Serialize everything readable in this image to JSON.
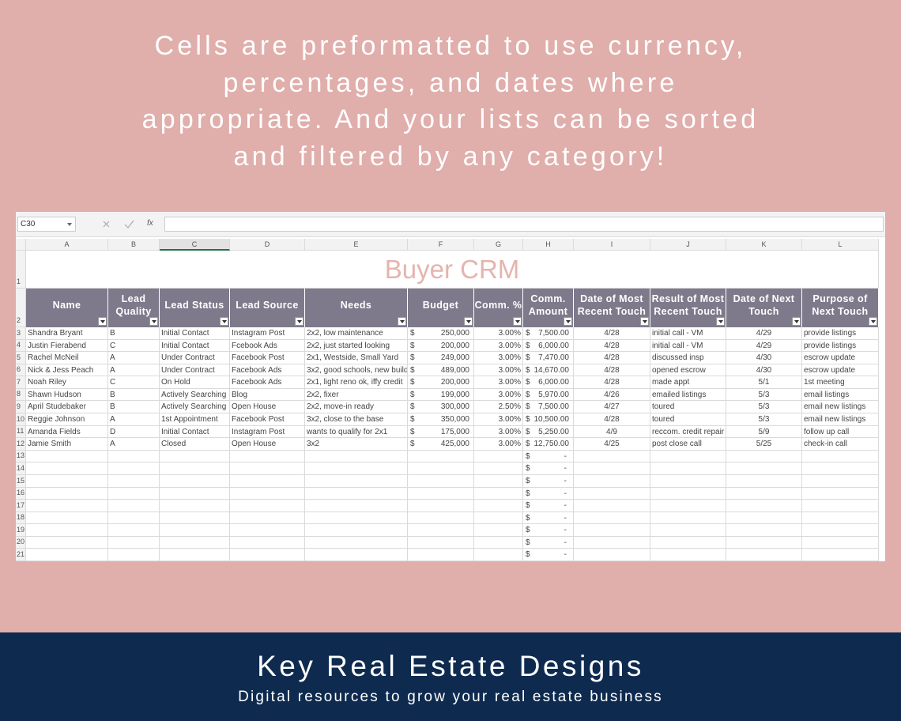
{
  "headline": {
    "lines": [
      "Cells are preformatted to use currency,",
      "percentages, and dates where",
      "appropriate. And your lists can be sorted",
      "and filtered by any category!"
    ]
  },
  "formula_bar": {
    "name_box": "C30",
    "fx_label": "fx"
  },
  "sheet": {
    "column_letters": [
      "A",
      "B",
      "C",
      "D",
      "E",
      "F",
      "G",
      "H",
      "I",
      "J",
      "K",
      "L"
    ],
    "row_numbers": [
      1,
      2,
      3,
      4,
      5,
      6,
      7,
      8,
      9,
      10,
      11,
      12,
      13,
      14,
      15,
      16,
      17,
      18,
      19,
      20,
      21
    ],
    "title": "Buyer CRM",
    "headers": [
      "Name",
      "Lead\nQuality",
      "Lead Status",
      "Lead Source",
      "Needs",
      "Budget",
      "Comm. %",
      "Comm.\nAmount",
      "Date of Most\nRecent Touch",
      "Result of Most\nRecent Touch",
      "Date of Next\nTouch",
      "Purpose of\nNext Touch"
    ],
    "currency_symbol": "$",
    "empty_amount": "-",
    "rows": [
      [
        "Shandra Bryant",
        "B",
        "Initial Contact",
        "Instagram Post",
        "2x2, low maintenance",
        "250,000",
        "3.00%",
        "7,500.00",
        "4/28",
        "initial call - VM",
        "4/29",
        "provide listings"
      ],
      [
        "Justin Fierabend",
        "C",
        "Initial Contact",
        "Fcebook Ads",
        "2x2, just started looking",
        "200,000",
        "3.00%",
        "6,000.00",
        "4/28",
        "initial call - VM",
        "4/29",
        "provide listings"
      ],
      [
        "Rachel McNeil",
        "A",
        "Under Contract",
        "Facebook Post",
        "2x1, Westside, Small Yard",
        "249,000",
        "3.00%",
        "7,470.00",
        "4/28",
        "discussed insp",
        "4/30",
        "escrow update"
      ],
      [
        "Nick & Jess Peach",
        "A",
        "Under Contract",
        "Facebook Ads",
        "3x2, good schools, new build",
        "489,000",
        "3.00%",
        "14,670.00",
        "4/28",
        "opened escrow",
        "4/30",
        "escrow update"
      ],
      [
        "Noah Riley",
        "C",
        "On Hold",
        "Facebook Ads",
        "2x1, light reno ok, iffy credit",
        "200,000",
        "3.00%",
        "6,000.00",
        "4/28",
        "made appt",
        "5/1",
        "1st meeting"
      ],
      [
        "Shawn Hudson",
        "B",
        "Actively Searching",
        "Blog",
        "2x2, fixer",
        "199,000",
        "3.00%",
        "5,970.00",
        "4/26",
        "emailed listings",
        "5/3",
        "email listings"
      ],
      [
        "April Studebaker",
        "B",
        "Actively Searching",
        "Open House",
        "2x2, move-in ready",
        "300,000",
        "2.50%",
        "7,500.00",
        "4/27",
        "toured",
        "5/3",
        "email new listings"
      ],
      [
        "Reggie Johnson",
        "A",
        "1st Appointment",
        "Facebook Post",
        "3x2, close to the base",
        "350,000",
        "3.00%",
        "10,500.00",
        "4/28",
        "toured",
        "5/3",
        "email new listings"
      ],
      [
        "Amanda Fields",
        "D",
        "Initial Contact",
        "Instagram Post",
        "wants to qualify for 2x1",
        "175,000",
        "3.00%",
        "5,250.00",
        "4/9",
        "reccom. credit repair",
        "5/9",
        "follow up call"
      ],
      [
        "Jamie Smith",
        "A",
        "Closed",
        "Open House",
        "3x2",
        "425,000",
        "3.00%",
        "12,750.00",
        "4/25",
        "post close call",
        "5/25",
        "check-in call"
      ]
    ]
  },
  "footer": {
    "brand": "Key Real Estate Designs",
    "tagline": "Digital resources to grow your real estate business"
  }
}
